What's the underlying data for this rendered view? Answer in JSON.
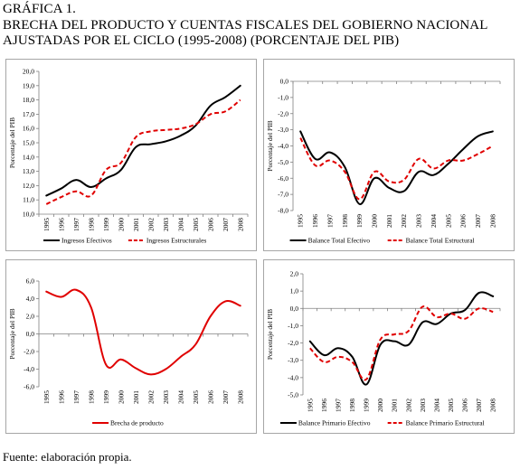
{
  "title": {
    "line1": "GRÁFICA 1.",
    "line2": "BRECHA DEL PRODUCTO Y CUENTAS FISCALES DEL GOBIERNO NACIONAL",
    "line3": "AJUSTADAS POR EL CICLO (1995-2008) (PORCENTAJE DEL PIB)"
  },
  "source": "Fuente: elaboración propia.",
  "colors": {
    "black": "#000000",
    "red": "#e00000",
    "axis": "#808080",
    "grid": "#d0d0d0"
  },
  "chart_data": [
    {
      "type": "line",
      "ylabel": "Porcentaje del PIB",
      "x": [
        "1995",
        "1996",
        "1997",
        "1998",
        "1999",
        "2000",
        "2001",
        "2002",
        "2003",
        "2004",
        "2005",
        "2006",
        "2007",
        "2008"
      ],
      "ylim": [
        10,
        20
      ],
      "yticks": [
        10,
        11,
        12,
        13,
        14,
        15,
        16,
        17,
        18,
        19,
        20
      ],
      "ytick_labels": [
        "10,0",
        "11,0",
        "12,0",
        "13,0",
        "14,0",
        "15,0",
        "16,0",
        "17,0",
        "18,0",
        "19,0",
        "20,0"
      ],
      "series": [
        {
          "name": "Ingresos Efectivos",
          "style": "solid",
          "color": "#000000",
          "values": [
            11.3,
            11.8,
            12.4,
            11.9,
            12.5,
            13.1,
            14.7,
            14.9,
            15.1,
            15.5,
            16.2,
            17.6,
            18.2,
            19.0
          ]
        },
        {
          "name": "Ingresos Estructurales",
          "style": "dashed",
          "color": "#e00000",
          "values": [
            10.7,
            11.2,
            11.6,
            11.3,
            13.1,
            13.6,
            15.4,
            15.8,
            15.9,
            16.0,
            16.3,
            17.0,
            17.2,
            18.0
          ]
        }
      ]
    },
    {
      "type": "line",
      "ylabel": "Porcentaje del PIB",
      "x": [
        "1995",
        "1996",
        "1997",
        "1998",
        "1999",
        "2000",
        "2001",
        "2002",
        "2003",
        "2004",
        "2005",
        "2006",
        "2007",
        "2008"
      ],
      "ylim": [
        -8,
        0
      ],
      "yticks": [
        0,
        -1,
        -2,
        -3,
        -4,
        -5,
        -6,
        -7,
        -8
      ],
      "ytick_labels": [
        "0,0",
        "-1,0",
        "-2,0",
        "-3,0",
        "-4,0",
        "-5,0",
        "-6,0",
        "-7,0",
        "-8,0"
      ],
      "series": [
        {
          "name": "Balance Total Efectivo",
          "style": "solid",
          "color": "#000000",
          "values": [
            -3.1,
            -4.8,
            -4.4,
            -5.3,
            -7.6,
            -6.0,
            -6.6,
            -6.8,
            -5.6,
            -5.8,
            -5.1,
            -4.2,
            -3.4,
            -3.1
          ]
        },
        {
          "name": "Balance Total Estructural",
          "style": "dashed",
          "color": "#e00000",
          "values": [
            -3.5,
            -5.2,
            -4.9,
            -5.6,
            -7.3,
            -5.6,
            -6.2,
            -6.1,
            -4.8,
            -5.4,
            -4.9,
            -4.9,
            -4.5,
            -4.0
          ]
        }
      ]
    },
    {
      "type": "line",
      "ylabel": "Porcentaje del PIB",
      "x": [
        "1995",
        "1996",
        "1997",
        "1998",
        "1999",
        "2000",
        "2001",
        "2002",
        "2003",
        "2004",
        "2005",
        "2006",
        "2007",
        "2008"
      ],
      "ylim": [
        -6,
        6
      ],
      "yticks": [
        6,
        4,
        2,
        0,
        -2,
        -4,
        -6
      ],
      "ytick_labels": [
        "6,0",
        "4,0",
        "2,0",
        "0,0",
        "-2,0",
        "-4,0",
        "-6,0"
      ],
      "series": [
        {
          "name": "Brecha de producto",
          "style": "solid",
          "color": "#e00000",
          "values": [
            4.8,
            4.2,
            5.0,
            3.0,
            -3.5,
            -2.9,
            -3.9,
            -4.6,
            -4.0,
            -2.6,
            -1.2,
            2.0,
            3.7,
            3.2
          ]
        }
      ]
    },
    {
      "type": "line",
      "ylabel": "Porcentaje del PIB",
      "x": [
        "1995",
        "1996",
        "1997",
        "1998",
        "1999",
        "2000",
        "2001",
        "2002",
        "2003",
        "2004",
        "2005",
        "2006",
        "2007",
        "2008"
      ],
      "ylim": [
        -5,
        2
      ],
      "yticks": [
        2,
        1,
        0,
        -1,
        -2,
        -3,
        -4,
        -5
      ],
      "ytick_labels": [
        "2,0",
        "1,0",
        "0,0",
        "-1,0",
        "-2,0",
        "-3,0",
        "-4,0",
        "-5,0"
      ],
      "series": [
        {
          "name": "Balance Primario Efectivo",
          "style": "solid",
          "color": "#000000",
          "values": [
            -1.9,
            -2.7,
            -2.3,
            -2.8,
            -4.4,
            -2.1,
            -1.9,
            -2.1,
            -0.8,
            -0.9,
            -0.3,
            -0.1,
            0.9,
            0.7
          ]
        },
        {
          "name": "Balance Primario Estructural",
          "style": "dashed",
          "color": "#e00000",
          "values": [
            -2.3,
            -3.1,
            -2.8,
            -3.1,
            -4.1,
            -1.8,
            -1.5,
            -1.3,
            0.1,
            -0.5,
            -0.3,
            -0.6,
            0.0,
            -0.2
          ]
        }
      ]
    }
  ]
}
